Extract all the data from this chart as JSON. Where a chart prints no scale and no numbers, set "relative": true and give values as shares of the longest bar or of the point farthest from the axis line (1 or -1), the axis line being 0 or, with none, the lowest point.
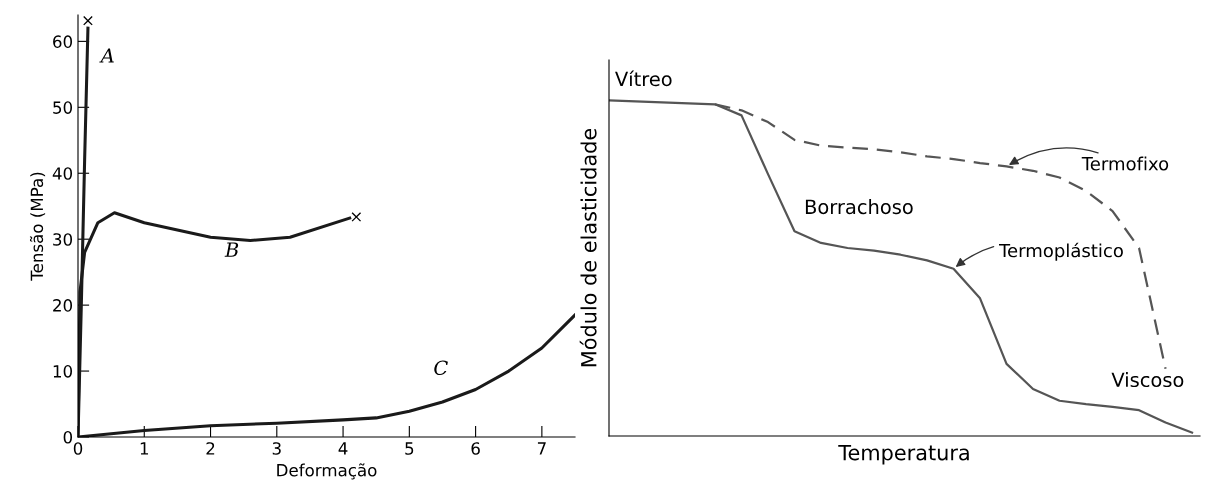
{
  "chart_data": [
    {
      "type": "line",
      "xlabel": "Deformação",
      "ylabel": "Tensão (MPa)",
      "xlim": [
        0,
        7.5
      ],
      "ylim": [
        0,
        64
      ],
      "xticks": [
        0,
        1,
        2,
        3,
        4,
        5,
        6,
        7
      ],
      "yticks": [
        0,
        10,
        20,
        30,
        40,
        50,
        60
      ],
      "grid": false,
      "legend": false,
      "series": [
        {
          "color": "#1a1a1a",
          "x": [
            0,
            0.05,
            0.1,
            0.15
          ],
          "values": [
            0,
            20,
            42,
            62
          ]
        },
        {
          "color": "#1a1a1a",
          "x": [
            0,
            0.03,
            0.1,
            0.3,
            0.55,
            1,
            2,
            2.6,
            3.2,
            4.1
          ],
          "values": [
            0,
            22,
            28,
            32.5,
            34,
            32.5,
            30.3,
            29.8,
            30.3,
            33.2
          ]
        },
        {
          "color": "#1a1a1a",
          "x": [
            0,
            1,
            2,
            3,
            4,
            4.5,
            5,
            5.5,
            6,
            6.5,
            7,
            7.5
          ],
          "values": [
            0,
            1,
            1.7,
            2.1,
            2.6,
            2.9,
            3.9,
            5.3,
            7.2,
            10,
            13.5,
            18.5
          ]
        }
      ],
      "annotations": [
        "A",
        "B",
        "C",
        "×",
        "×"
      ]
    },
    {
      "type": "line",
      "relative": true,
      "xlabel": "Temperatura",
      "ylabel": "Módulo de elasticidade",
      "grid": false,
      "legend": false,
      "categories": [
        null,
        null,
        null,
        null,
        null,
        null,
        null,
        null,
        null,
        null,
        null,
        null,
        null,
        null,
        null,
        null,
        null,
        null,
        null,
        null,
        null,
        null,
        null
      ],
      "series": [
        {
          "color": "#555555",
          "line_style": "solid",
          "values": [
            1.0,
            0.997,
            0.994,
            0.991,
            0.988,
            0.955,
            0.78,
            0.61,
            0.575,
            0.56,
            0.552,
            0.54,
            0.523,
            0.498,
            0.41,
            0.215,
            0.14,
            0.105,
            0.095,
            0.087,
            0.077,
            0.04,
            0.01
          ]
        },
        {
          "color": "#555555",
          "line_style": "dashed",
          "values": [
            null,
            null,
            null,
            null,
            0.988,
            0.97,
            0.935,
            0.882,
            0.865,
            0.859,
            0.854,
            0.845,
            0.833,
            0.825,
            0.813,
            0.803,
            0.79,
            0.77,
            0.73,
            0.67,
            0.56,
            0.2,
            null
          ]
        }
      ],
      "annotations": [
        "Vítreo",
        "Borrachoso",
        "Viscoso",
        "Termofixo",
        "Termoplástico"
      ]
    }
  ]
}
